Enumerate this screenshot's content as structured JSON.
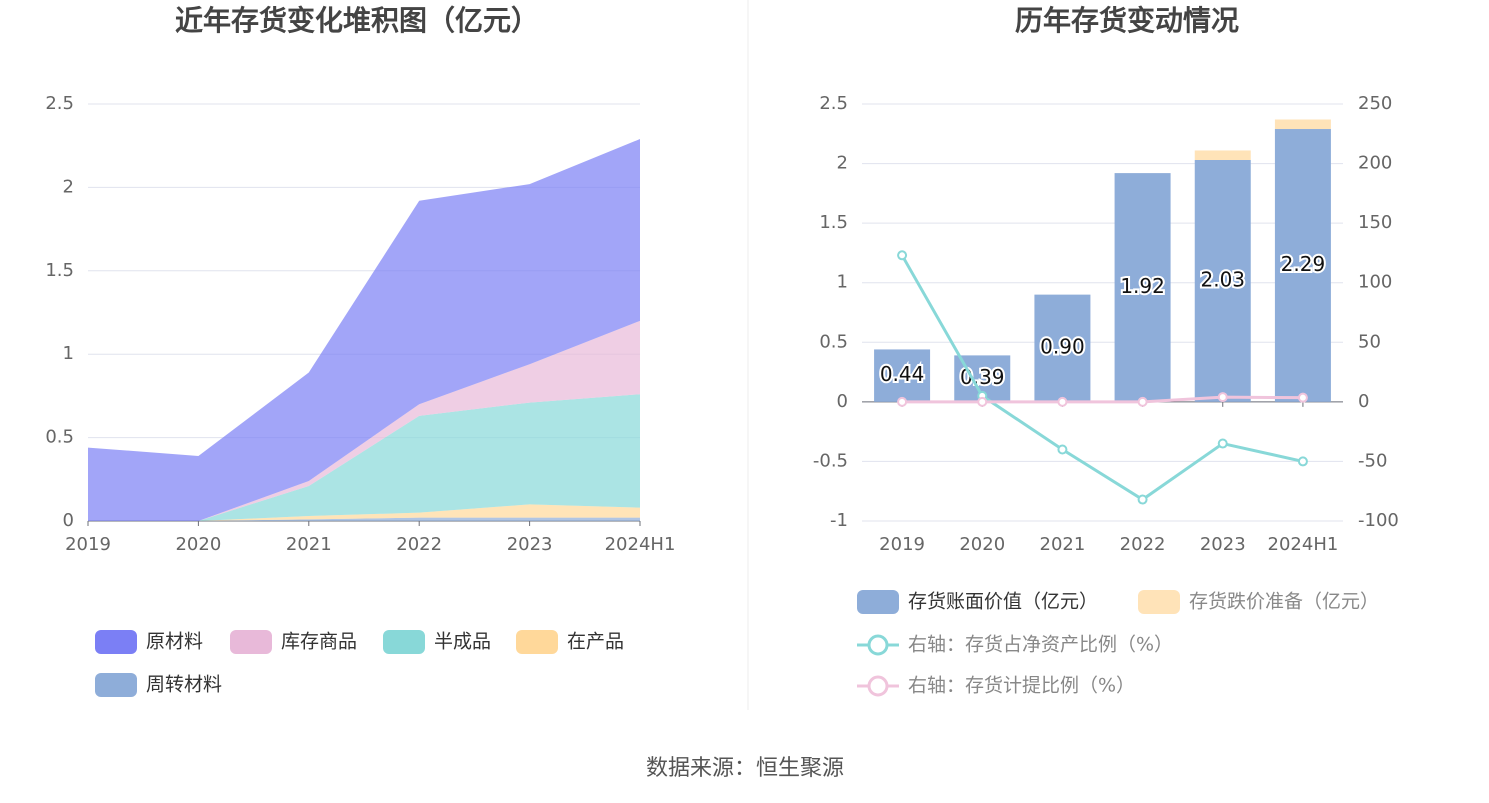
{
  "chart_data": [
    {
      "type": "stacked_area",
      "title": "近年存货变化堆积图（亿元）",
      "categories": [
        "2019",
        "2020",
        "2021",
        "2022",
        "2023",
        "2024H1"
      ],
      "ylim": [
        0,
        2.5
      ],
      "yticks": [
        0,
        0.5,
        1,
        1.5,
        2,
        2.5
      ],
      "grid": true,
      "series": [
        {
          "name": "原材料",
          "color": "#7b7ff5",
          "values": [
            0.44,
            0.39,
            0.65,
            1.22,
            1.08,
            1.09
          ]
        },
        {
          "name": "库存商品",
          "color": "#e8b9d9",
          "values": [
            0,
            0,
            0.03,
            0.07,
            0.23,
            0.44
          ]
        },
        {
          "name": "半成品",
          "color": "#88d8d8",
          "values": [
            0,
            0,
            0.18,
            0.58,
            0.61,
            0.68
          ]
        },
        {
          "name": "在产品",
          "color": "#ffd89a",
          "values": [
            0,
            0,
            0.02,
            0.03,
            0.08,
            0.06
          ]
        },
        {
          "name": "周转材料",
          "color": "#8eadd9",
          "values": [
            0,
            0,
            0.01,
            0.02,
            0.02,
            0.02
          ]
        }
      ]
    },
    {
      "type": "bar_line",
      "title": "历年存货变动情况",
      "categories": [
        "2019",
        "2020",
        "2021",
        "2022",
        "2023",
        "2024H1"
      ],
      "ylim": [
        -1,
        2.5
      ],
      "yticks": [
        -1,
        -0.5,
        0,
        0.5,
        1,
        1.5,
        2,
        2.5
      ],
      "y2lim": [
        -100,
        250
      ],
      "y2ticks": [
        -100,
        -50,
        0,
        50,
        100,
        150,
        200,
        250
      ],
      "grid": true,
      "series": [
        {
          "name": "存货账面价值（亿元）",
          "color": "#8eadd9",
          "type": "bar",
          "values": [
            0.44,
            0.39,
            0.9,
            1.92,
            2.03,
            2.29
          ],
          "value_labels": [
            "0.44",
            "0.39",
            "0.90",
            "1.92",
            "2.03",
            "2.29"
          ]
        },
        {
          "name": "存货跌价准备（亿元）",
          "color": "#ffe3b8",
          "type": "bar",
          "values": [
            0,
            0,
            0,
            0,
            0.08,
            0.08
          ]
        },
        {
          "name": "右轴：存货占净资产比例（%）",
          "color": "#88d8d8",
          "type": "line",
          "axis": "y2",
          "values": [
            123,
            5,
            -40,
            -82,
            -35,
            -50
          ]
        },
        {
          "name": "右轴：存货计提比例（%）",
          "color": "#f0c4dc",
          "type": "line",
          "axis": "y2",
          "values": [
            0,
            0,
            0,
            0,
            4,
            3.5
          ]
        }
      ]
    }
  ],
  "source": "数据来源：恒生聚源"
}
